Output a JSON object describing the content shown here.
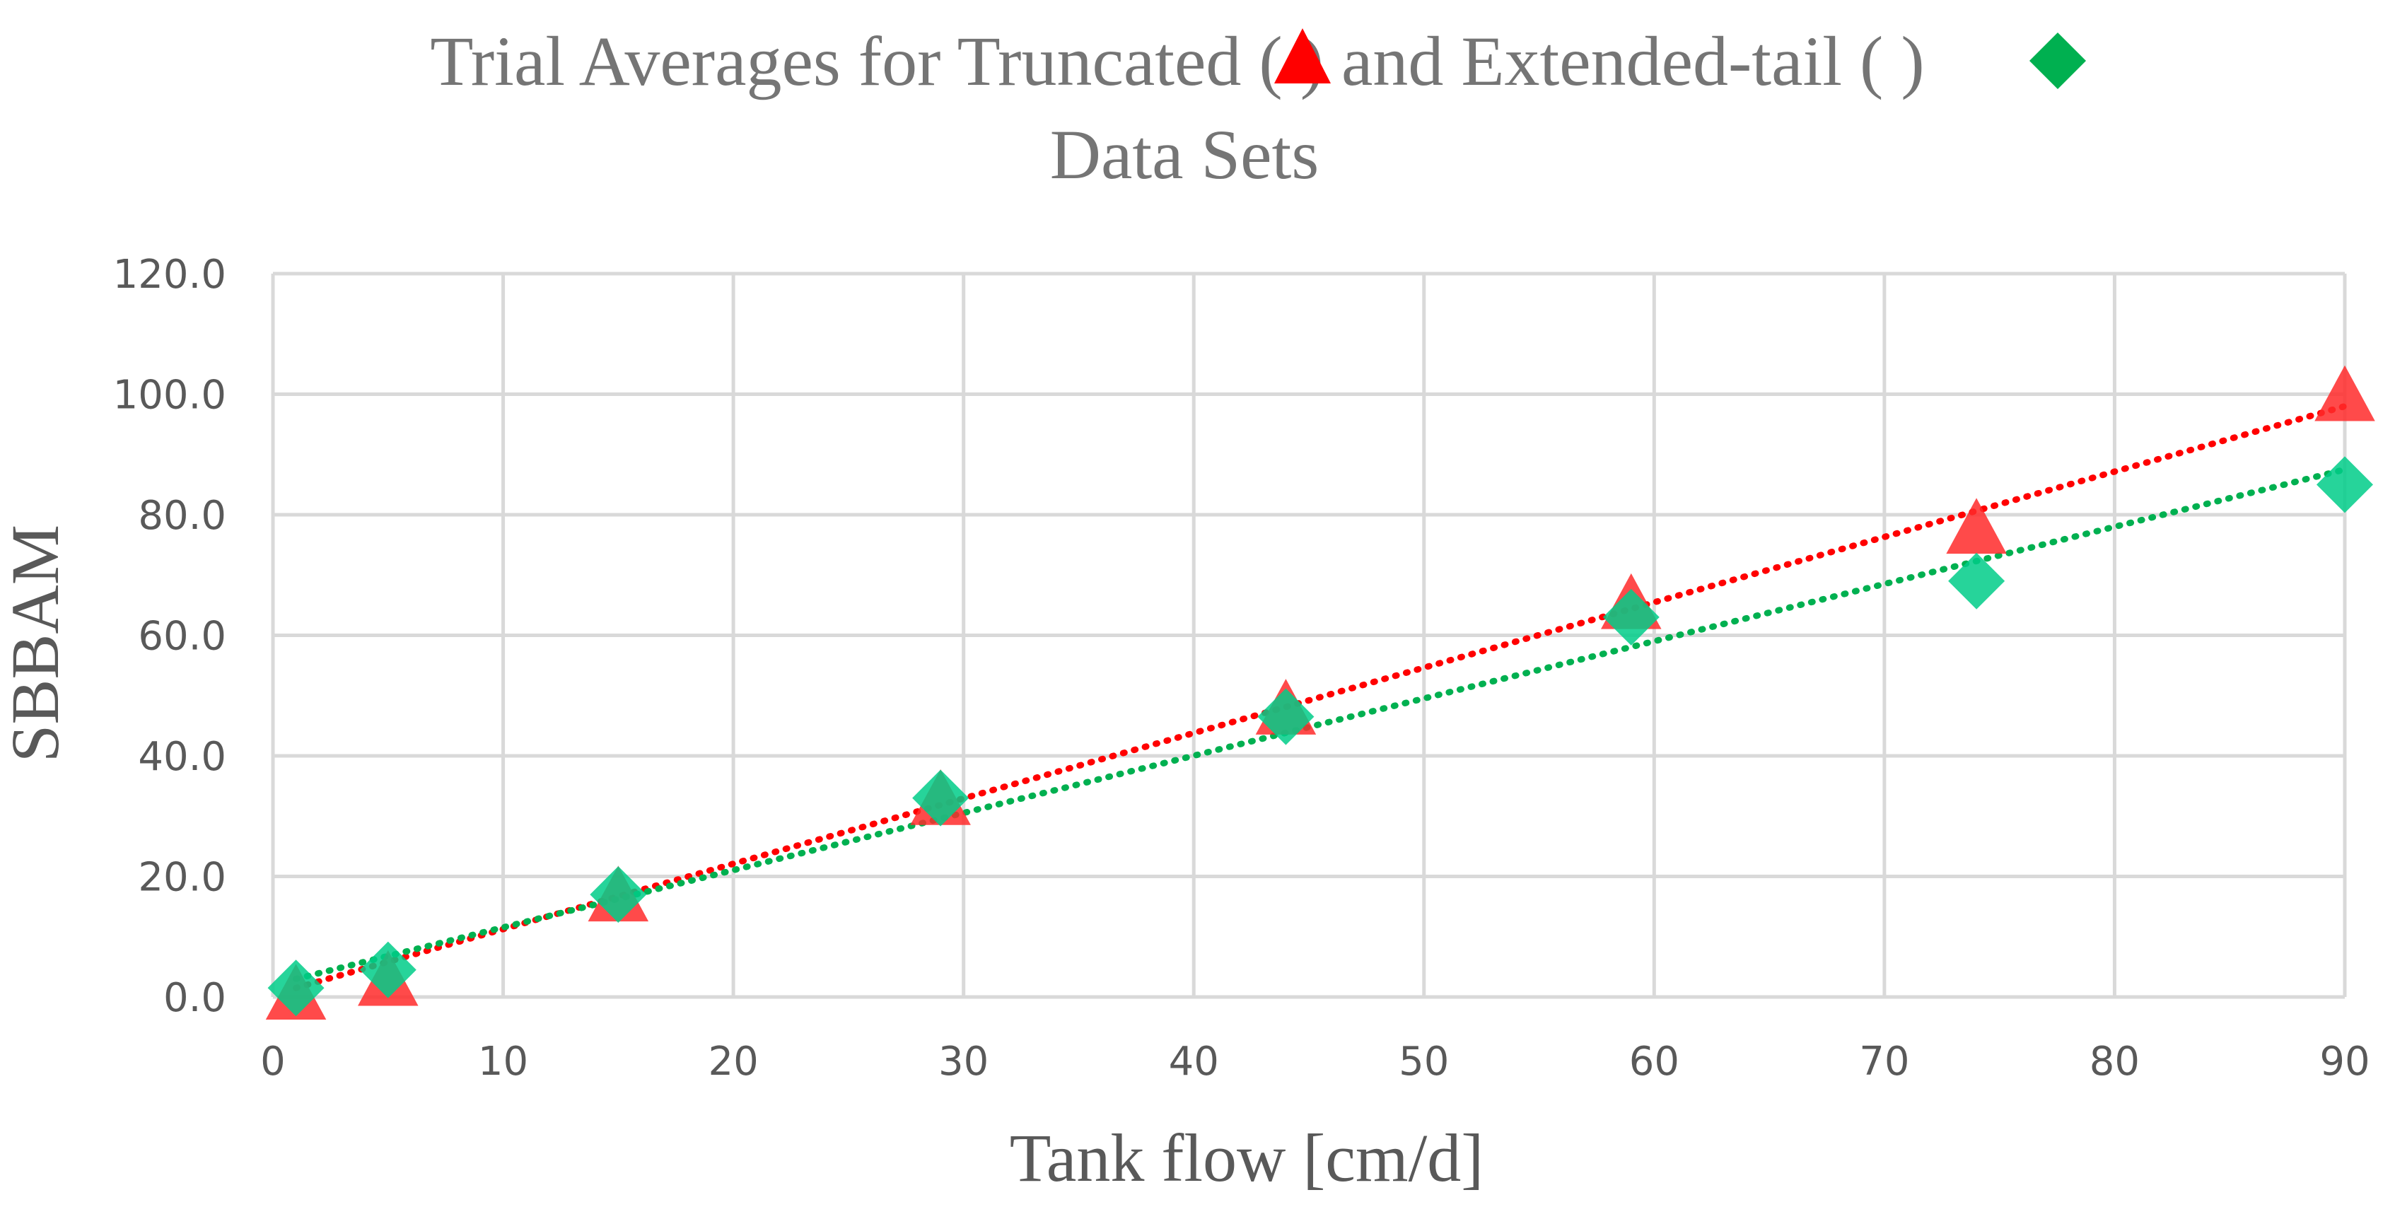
{
  "chart_data": {
    "type": "scatter",
    "title": {
      "line1_part1": "Trial Averages for Truncated (",
      "line1_part2": ") and Extended-tail (",
      "line1_part3": ")",
      "line2": "Data Sets"
    },
    "xlabel": "Tank flow [cm/d]",
    "ylabel": "SBBAM",
    "xlim": [
      0,
      90
    ],
    "ylim": [
      0,
      120
    ],
    "x_ticks": [
      "0",
      "10",
      "20",
      "30",
      "40",
      "50",
      "60",
      "70",
      "80",
      "90"
    ],
    "y_ticks": [
      "0.0",
      "20.0",
      "40.0",
      "60.0",
      "80.0",
      "100.0",
      "120.0"
    ],
    "grid": true,
    "series": [
      {
        "marker": "triangle",
        "color": "#ff2a2a",
        "trend_color": "#ff0000",
        "x": [
          1,
          5,
          15,
          29,
          44,
          59,
          74,
          90
        ],
        "y": [
          0.2,
          2.5,
          16.5,
          32.5,
          47.5,
          65.0,
          77.5,
          99.5
        ],
        "trendline": {
          "type": "linear",
          "x": [
            1,
            90
          ],
          "y": [
            1.5,
            98.0
          ]
        }
      },
      {
        "marker": "diamond",
        "color": "#00cc88",
        "trend_color": "#00b050",
        "x": [
          1,
          5,
          15,
          29,
          44,
          59,
          74,
          90
        ],
        "y": [
          1.5,
          4.5,
          17.0,
          33.0,
          46.5,
          63.0,
          69.0,
          85.0
        ],
        "trendline": {
          "type": "linear",
          "x": [
            1,
            90
          ],
          "y": [
            3.0,
            87.5
          ]
        }
      }
    ]
  }
}
